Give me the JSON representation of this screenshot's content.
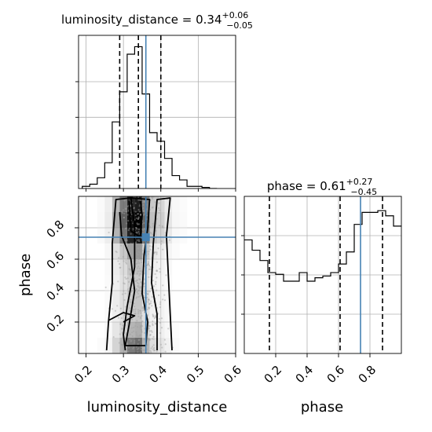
{
  "chart_data": {
    "type": "corner",
    "parameters": [
      "luminosity_distance",
      "phase"
    ],
    "xlabel_luminosity_distance": "luminosity_distance",
    "xlabel_phase": "phase",
    "ylabel_phase": "phase",
    "truths": {
      "luminosity_distance": 0.36,
      "phase": 0.74
    },
    "titles": [
      {
        "parameter": "luminosity_distance",
        "label": "luminosity_distance = 0.34",
        "plus": "+0.06",
        "minus": "−0.05",
        "median": 0.34,
        "q_lo": 0.29,
        "q_hi": 0.4
      },
      {
        "parameter": "phase",
        "label": "phase = 0.61",
        "plus": "+0.27",
        "minus": "−0.45",
        "median": 0.61,
        "q_lo": 0.16,
        "q_hi": 0.88
      }
    ],
    "luminosity_distance_hist": {
      "xlim": [
        0.18,
        0.6
      ],
      "bin_edges": [
        0.19,
        0.21,
        0.23,
        0.25,
        0.27,
        0.29,
        0.31,
        0.33,
        0.35,
        0.37,
        0.39,
        0.41,
        0.43,
        0.45,
        0.47,
        0.49,
        0.51,
        0.53,
        0.55
      ],
      "counts": [
        2,
        4,
        10,
        24,
        62,
        90,
        125,
        132,
        88,
        52,
        44,
        28,
        12,
        8,
        2,
        2,
        1,
        0
      ]
    },
    "phase_hist": {
      "xlim": [
        0.0,
        1.0
      ],
      "bin_edges": [
        0.0,
        0.05,
        0.1,
        0.15,
        0.2,
        0.25,
        0.3,
        0.35,
        0.4,
        0.45,
        0.5,
        0.55,
        0.6,
        0.65,
        0.7,
        0.75,
        0.8,
        0.85,
        0.9,
        0.95,
        1.0
      ],
      "counts": [
        66,
        60,
        54,
        47,
        46,
        42,
        42,
        47,
        42,
        44,
        45,
        47,
        52,
        59,
        75,
        82,
        82,
        83,
        80,
        74
      ]
    },
    "joint": {
      "xlim": [
        0.18,
        0.6
      ],
      "ylim": [
        0.0,
        1.0
      ],
      "contour_levels": 3
    },
    "ticks": {
      "luminosity_distance": [
        "0.2",
        "0.3",
        "0.4",
        "0.5",
        "0.6"
      ],
      "phase": [
        "0.2",
        "0.4",
        "0.6",
        "0.8"
      ]
    }
  }
}
